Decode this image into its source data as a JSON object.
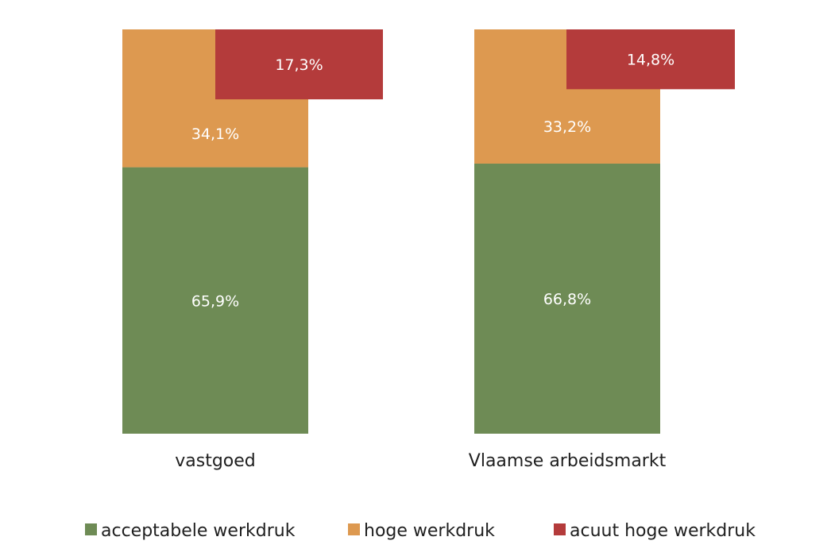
{
  "chart_data": {
    "type": "bar",
    "title": "",
    "xlabel": "",
    "ylabel": "",
    "ylim": [
      0,
      100
    ],
    "grid": false,
    "legend_position": "bottom",
    "categories": [
      "vastgoed",
      "Vlaamse arbeidsmarkt"
    ],
    "series": [
      {
        "name": "acceptabele werkdruk",
        "color": "#6e8b55",
        "values": [
          65.9,
          66.8
        ],
        "labels": [
          "65,9%",
          "66,8%"
        ]
      },
      {
        "name": "hoge werkdruk",
        "color": "#dd9950",
        "values": [
          34.1,
          33.2
        ],
        "labels": [
          "34,1%",
          "33,2%"
        ]
      },
      {
        "name": "acuut hoge werkdruk",
        "color": "#b43b3b",
        "values": [
          17.3,
          14.8
        ],
        "labels": [
          "17,3%",
          "14,8%"
        ]
      }
    ]
  }
}
